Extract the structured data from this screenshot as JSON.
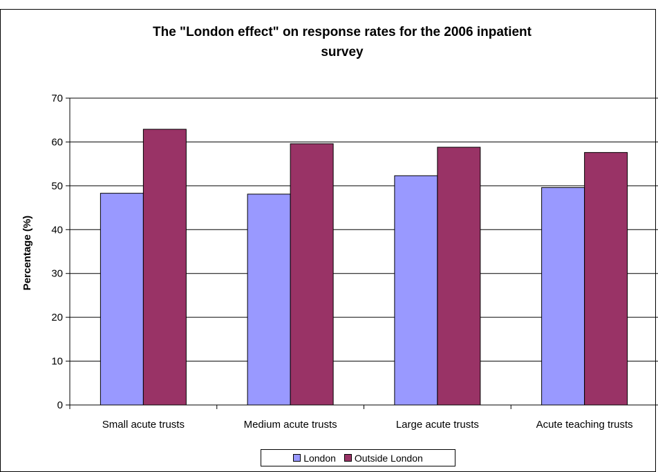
{
  "caption": "",
  "chart_data": {
    "type": "bar",
    "title": "The \"London effect\" on response rates for the 2006 inpatient survey",
    "title_lines": [
      "The \"London effect\" on response rates for the 2006 inpatient",
      "survey"
    ],
    "xlabel": "",
    "ylabel": "Percentage (%)",
    "categories": [
      "Small acute trusts",
      "Medium acute trusts",
      "Large acute trusts",
      "Acute teaching trusts"
    ],
    "series": [
      {
        "name": "London",
        "color": "#9999ff",
        "values": [
          48.3,
          48.1,
          52.3,
          49.6
        ]
      },
      {
        "name": "Outside London",
        "color": "#993366",
        "values": [
          62.9,
          59.6,
          58.8,
          57.6
        ]
      }
    ],
    "ylim": [
      0,
      70
    ],
    "yticks": [
      "0",
      "10",
      "20",
      "30",
      "40",
      "50",
      "60",
      "70"
    ],
    "grid": "horizontal",
    "legend_position": "bottom"
  }
}
